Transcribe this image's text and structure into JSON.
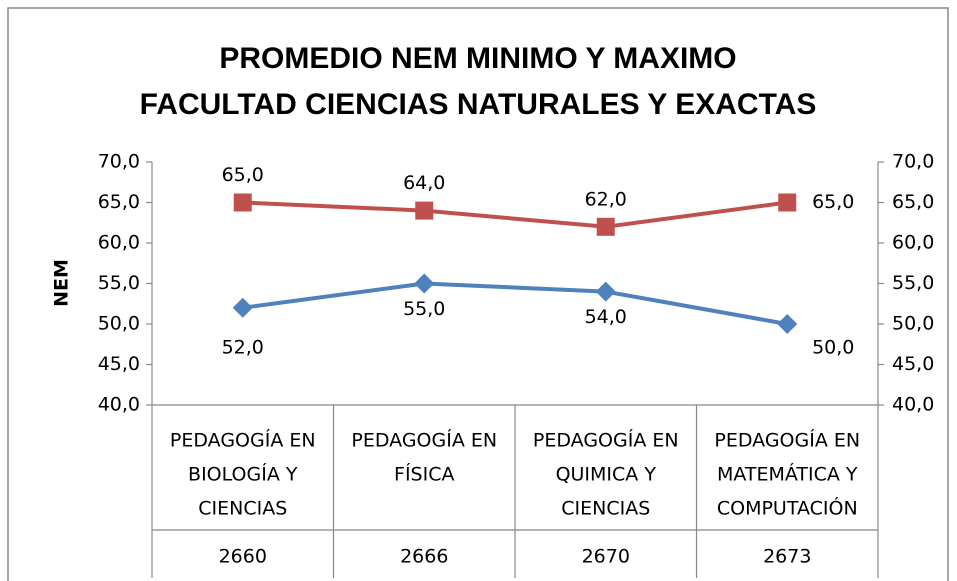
{
  "chart_data": {
    "type": "line",
    "title": [
      "PROMEDIO NEM MINIMO Y MAXIMO",
      "FACULTAD CIENCIAS NATURALES Y EXACTAS"
    ],
    "ylabel": "NEM",
    "categories": [
      [
        "PEDAGOGÍA EN",
        "BIOLOGÍA Y",
        "CIENCIAS"
      ],
      [
        "PEDAGOGÍA EN",
        "FÍSICA"
      ],
      [
        "PEDAGOGÍA EN",
        "QUIMICA Y",
        "CIENCIAS"
      ],
      [
        "PEDAGOGÍA EN",
        "MATEMÁTICA Y",
        "COMPUTACIÓN"
      ]
    ],
    "category_codes": [
      "2660",
      "2666",
      "2670",
      "2673"
    ],
    "series": [
      {
        "color": "#c0504d",
        "marker": "square",
        "values": [
          65,
          64,
          62,
          65
        ],
        "value_labels": [
          "65,0",
          "64,0",
          "62,0",
          "65,0"
        ]
      },
      {
        "color": "#4f81bd",
        "marker": "diamond",
        "values": [
          52,
          55,
          54,
          50
        ],
        "value_labels": [
          "52,0",
          "55,0",
          "54,0",
          "50,0"
        ]
      }
    ],
    "ylim": [
      40,
      70
    ],
    "yticks": [
      {
        "value": 40,
        "label": "40,0"
      },
      {
        "value": 45,
        "label": "45,0"
      },
      {
        "value": 50,
        "label": "50,0"
      },
      {
        "value": 55,
        "label": "55,0"
      },
      {
        "value": 60,
        "label": "60,0"
      },
      {
        "value": 65,
        "label": "65,0"
      },
      {
        "value": 70,
        "label": "70,0"
      }
    ],
    "y2lim": [
      40,
      70
    ],
    "y2ticks": [
      {
        "value": 40,
        "label": "40,0"
      },
      {
        "value": 45,
        "label": "45,0"
      },
      {
        "value": 50,
        "label": "50,0"
      },
      {
        "value": 55,
        "label": "55,0"
      },
      {
        "value": 60,
        "label": "60,0"
      },
      {
        "value": 65,
        "label": "65,0"
      },
      {
        "value": 70,
        "label": "70,0"
      }
    ],
    "grid": false
  }
}
